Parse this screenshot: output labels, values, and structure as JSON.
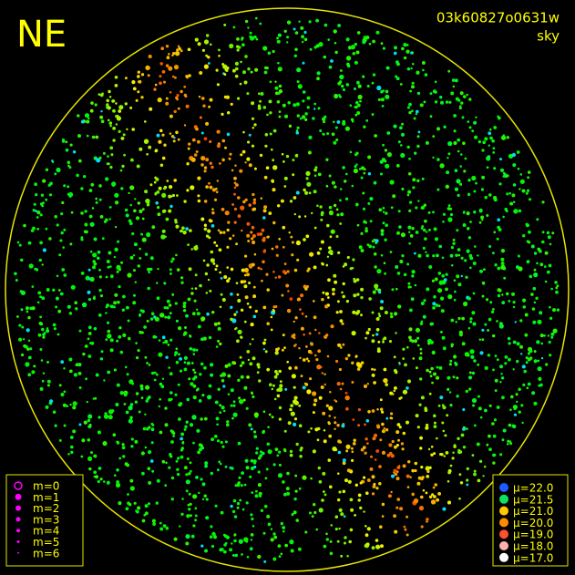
{
  "header": {
    "direction": "NE",
    "id": "03k60827o0631w",
    "mode": "sky"
  },
  "magnitude_legend": [
    "m=0",
    "m=1",
    "m=2",
    "m=3",
    "m=4",
    "m=5",
    "m=6"
  ],
  "brightness_legend": [
    "μ=22.0",
    "μ=21.5",
    "μ=21.0",
    "μ=20.0",
    "μ=19.0",
    "μ=18.0",
    "μ=17.0"
  ]
}
